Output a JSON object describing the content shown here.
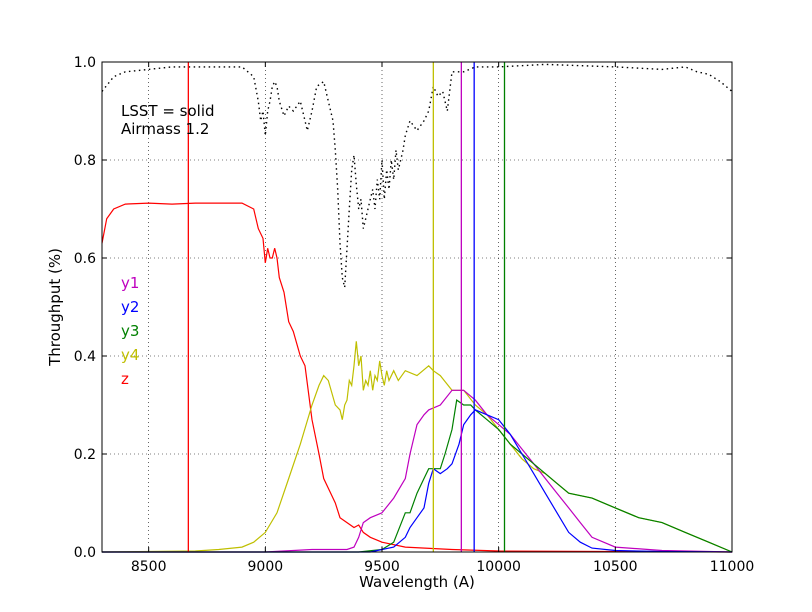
{
  "chart_data": {
    "type": "line",
    "title": "",
    "xlabel": "Wavelength (A)",
    "ylabel": "Throughput (%)",
    "xlim": [
      8300,
      11000
    ],
    "ylim": [
      0.0,
      1.0
    ],
    "xticks": [
      8500,
      9000,
      9500,
      10000,
      10500,
      11000
    ],
    "yticks": [
      0.0,
      0.2,
      0.4,
      0.6,
      0.8,
      1.0
    ],
    "xtick_labels": [
      "8500",
      "9000",
      "9500",
      "10000",
      "10500",
      "11000"
    ],
    "ytick_labels": [
      "0.0",
      "0.2",
      "0.4",
      "0.6",
      "0.8",
      "1.0"
    ],
    "grid": true,
    "annotations": [
      "LSST = solid",
      "Airmass 1.2"
    ],
    "legend_placement": "left",
    "colors": {
      "y1": "#bf00bf",
      "y2": "#0000ff",
      "y3": "#008000",
      "y4": "#bfbf00",
      "z": "#ff0000",
      "atmosphere": "#000000"
    },
    "series": [
      {
        "name": "z",
        "color": "#ff0000",
        "x": [
          8300,
          8320,
          8350,
          8400,
          8500,
          8600,
          8700,
          8800,
          8900,
          8950,
          8970,
          8990,
          9000,
          9010,
          9020,
          9030,
          9040,
          9050,
          9060,
          9080,
          9100,
          9120,
          9150,
          9170,
          9200,
          9230,
          9250,
          9280,
          9300,
          9320,
          9350,
          9380,
          9400,
          9420,
          9450,
          9500,
          9600,
          9800,
          10000,
          11000
        ],
        "y": [
          0.63,
          0.68,
          0.7,
          0.71,
          0.712,
          0.71,
          0.712,
          0.712,
          0.712,
          0.7,
          0.66,
          0.64,
          0.59,
          0.62,
          0.6,
          0.6,
          0.62,
          0.6,
          0.56,
          0.53,
          0.47,
          0.45,
          0.4,
          0.38,
          0.27,
          0.2,
          0.15,
          0.12,
          0.1,
          0.07,
          0.06,
          0.05,
          0.055,
          0.04,
          0.03,
          0.02,
          0.01,
          0.005,
          0.002,
          0.0
        ]
      },
      {
        "name": "y4",
        "color": "#bfbf00",
        "x": [
          8300,
          8700,
          8800,
          8900,
          8950,
          9000,
          9050,
          9100,
          9150,
          9200,
          9230,
          9250,
          9270,
          9300,
          9320,
          9330,
          9340,
          9350,
          9360,
          9370,
          9380,
          9390,
          9400,
          9410,
          9420,
          9430,
          9440,
          9450,
          9460,
          9470,
          9480,
          9490,
          9500,
          9510,
          9520,
          9530,
          9550,
          9570,
          9600,
          9650,
          9700,
          9720,
          9750,
          9800,
          9850,
          9900,
          9950,
          10000,
          10050,
          10100,
          10150,
          10200,
          10250,
          10300,
          10400,
          10500,
          10600,
          10700,
          10800,
          10900,
          11000
        ],
        "y": [
          0.0,
          0.002,
          0.005,
          0.01,
          0.02,
          0.04,
          0.08,
          0.15,
          0.22,
          0.3,
          0.34,
          0.36,
          0.35,
          0.3,
          0.29,
          0.27,
          0.3,
          0.31,
          0.35,
          0.34,
          0.38,
          0.43,
          0.38,
          0.4,
          0.33,
          0.35,
          0.34,
          0.37,
          0.33,
          0.36,
          0.35,
          0.39,
          0.36,
          0.34,
          0.37,
          0.35,
          0.37,
          0.35,
          0.37,
          0.36,
          0.38,
          0.37,
          0.36,
          0.33,
          0.33,
          0.3,
          0.28,
          0.25,
          0.22,
          0.19,
          0.17,
          0.16,
          0.14,
          0.12,
          0.11,
          0.09,
          0.07,
          0.06,
          0.04,
          0.02,
          0.0
        ]
      },
      {
        "name": "y1",
        "color": "#bf00bf",
        "x": [
          8300,
          9000,
          9200,
          9350,
          9380,
          9400,
          9420,
          9450,
          9500,
          9550,
          9600,
          9620,
          9650,
          9680,
          9700,
          9750,
          9800,
          9850,
          9900,
          9950,
          10000,
          10050,
          10100,
          10150,
          10200,
          10250,
          10300,
          10350,
          10400,
          10500,
          10700,
          11000
        ],
        "y": [
          0.0,
          0.0,
          0.005,
          0.005,
          0.01,
          0.03,
          0.06,
          0.07,
          0.08,
          0.11,
          0.15,
          0.2,
          0.26,
          0.28,
          0.29,
          0.3,
          0.33,
          0.33,
          0.31,
          0.28,
          0.26,
          0.24,
          0.21,
          0.18,
          0.15,
          0.12,
          0.09,
          0.06,
          0.03,
          0.01,
          0.003,
          0.0
        ]
      },
      {
        "name": "y3",
        "color": "#008000",
        "x": [
          8300,
          9400,
          9500,
          9550,
          9600,
          9620,
          9650,
          9680,
          9700,
          9750,
          9770,
          9800,
          9820,
          9850,
          9880,
          9900,
          9950,
          10000,
          10050,
          10100,
          10150,
          10200,
          10250,
          10300,
          10400,
          10500,
          10600,
          10700,
          10800,
          10900,
          11000
        ],
        "y": [
          0.0,
          0.0,
          0.005,
          0.02,
          0.08,
          0.08,
          0.12,
          0.15,
          0.17,
          0.17,
          0.2,
          0.25,
          0.31,
          0.3,
          0.3,
          0.29,
          0.27,
          0.25,
          0.22,
          0.2,
          0.18,
          0.16,
          0.14,
          0.12,
          0.11,
          0.09,
          0.07,
          0.06,
          0.04,
          0.02,
          0.0
        ]
      },
      {
        "name": "y2",
        "color": "#0000ff",
        "x": [
          8300,
          9450,
          9550,
          9600,
          9620,
          9650,
          9680,
          9700,
          9720,
          9750,
          9780,
          9800,
          9830,
          9850,
          9880,
          9900,
          9950,
          10000,
          10050,
          10100,
          10150,
          10200,
          10250,
          10300,
          10350,
          10400,
          10500,
          10700,
          11000
        ],
        "y": [
          0.0,
          0.0,
          0.01,
          0.03,
          0.05,
          0.07,
          0.09,
          0.14,
          0.17,
          0.16,
          0.17,
          0.18,
          0.22,
          0.26,
          0.28,
          0.29,
          0.28,
          0.27,
          0.24,
          0.2,
          0.16,
          0.12,
          0.08,
          0.04,
          0.02,
          0.008,
          0.003,
          0.001,
          0.0
        ]
      },
      {
        "name": "atmosphere",
        "color": "#000000",
        "dotted": true,
        "x": [
          8300,
          8350,
          8400,
          8500,
          8600,
          8700,
          8800,
          8900,
          8950,
          8970,
          8980,
          8990,
          9000,
          9010,
          9020,
          9030,
          9040,
          9050,
          9060,
          9080,
          9100,
          9120,
          9150,
          9170,
          9180,
          9200,
          9220,
          9250,
          9270,
          9290,
          9300,
          9310,
          9320,
          9330,
          9340,
          9350,
          9360,
          9370,
          9380,
          9390,
          9400,
          9410,
          9420,
          9430,
          9440,
          9450,
          9460,
          9470,
          9480,
          9490,
          9500,
          9510,
          9520,
          9530,
          9540,
          9550,
          9560,
          9570,
          9580,
          9590,
          9600,
          9620,
          9650,
          9680,
          9700,
          9720,
          9740,
          9760,
          9780,
          9800,
          9850,
          9900,
          10000,
          10200,
          10500,
          10700,
          10800,
          10850,
          10900,
          10950,
          11000
        ],
        "y": [
          0.94,
          0.97,
          0.98,
          0.985,
          0.99,
          0.99,
          0.99,
          0.99,
          0.97,
          0.92,
          0.88,
          0.9,
          0.85,
          0.9,
          0.92,
          0.95,
          0.96,
          0.95,
          0.92,
          0.89,
          0.91,
          0.9,
          0.92,
          0.88,
          0.86,
          0.9,
          0.95,
          0.96,
          0.92,
          0.88,
          0.82,
          0.74,
          0.63,
          0.56,
          0.54,
          0.62,
          0.7,
          0.78,
          0.81,
          0.75,
          0.7,
          0.72,
          0.66,
          0.68,
          0.7,
          0.72,
          0.74,
          0.7,
          0.76,
          0.72,
          0.8,
          0.72,
          0.78,
          0.74,
          0.8,
          0.76,
          0.82,
          0.78,
          0.8,
          0.82,
          0.85,
          0.88,
          0.86,
          0.88,
          0.9,
          0.95,
          0.93,
          0.94,
          0.9,
          0.98,
          0.98,
          0.99,
          0.99,
          0.995,
          0.99,
          0.985,
          0.99,
          0.98,
          0.975,
          0.96,
          0.94
        ]
      }
    ],
    "vlines": [
      {
        "x": 8670,
        "color": "#ff0000"
      },
      {
        "x": 9720,
        "color": "#bfbf00"
      },
      {
        "x": 9840,
        "color": "#bf00bf"
      },
      {
        "x": 9895,
        "color": "#0000ff"
      },
      {
        "x": 10025,
        "color": "#008000"
      }
    ],
    "legend": [
      {
        "label": "y1",
        "color": "#bf00bf"
      },
      {
        "label": "y2",
        "color": "#0000ff"
      },
      {
        "label": "y3",
        "color": "#008000"
      },
      {
        "label": "y4",
        "color": "#bfbf00"
      },
      {
        "label": "z",
        "color": "#ff0000"
      }
    ]
  }
}
